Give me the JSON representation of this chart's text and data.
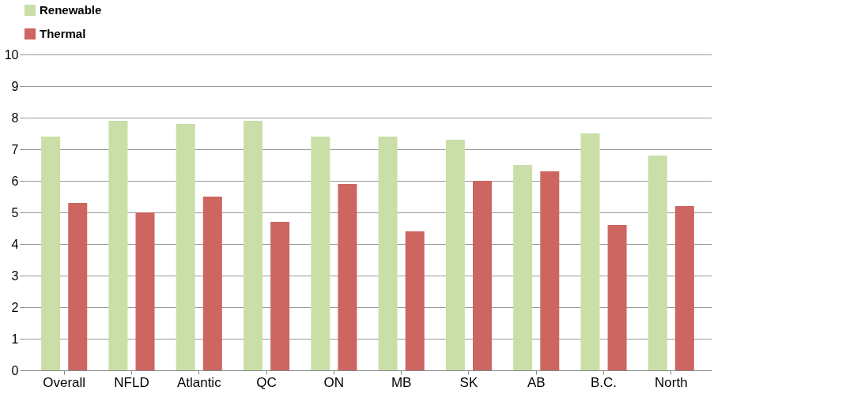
{
  "chart_data": {
    "type": "bar",
    "categories": [
      "Overall",
      "NFLD",
      "Atlantic",
      "QC",
      "ON",
      "MB",
      "SK",
      "AB",
      "B.C.",
      "North"
    ],
    "series": [
      {
        "name": "Renewable",
        "color": "#c9dfa7",
        "values": [
          7.4,
          7.9,
          7.8,
          7.9,
          7.4,
          7.4,
          7.3,
          6.5,
          7.5,
          6.8
        ]
      },
      {
        "name": "Thermal",
        "color": "#cd6660",
        "values": [
          5.3,
          5.0,
          5.5,
          4.7,
          5.9,
          4.4,
          6.0,
          6.3,
          4.6,
          5.2
        ]
      }
    ],
    "ylim": [
      0,
      10
    ],
    "yticks": [
      0,
      1,
      2,
      3,
      4,
      5,
      6,
      7,
      8,
      9,
      10
    ],
    "grid": "y",
    "legend": "top"
  }
}
